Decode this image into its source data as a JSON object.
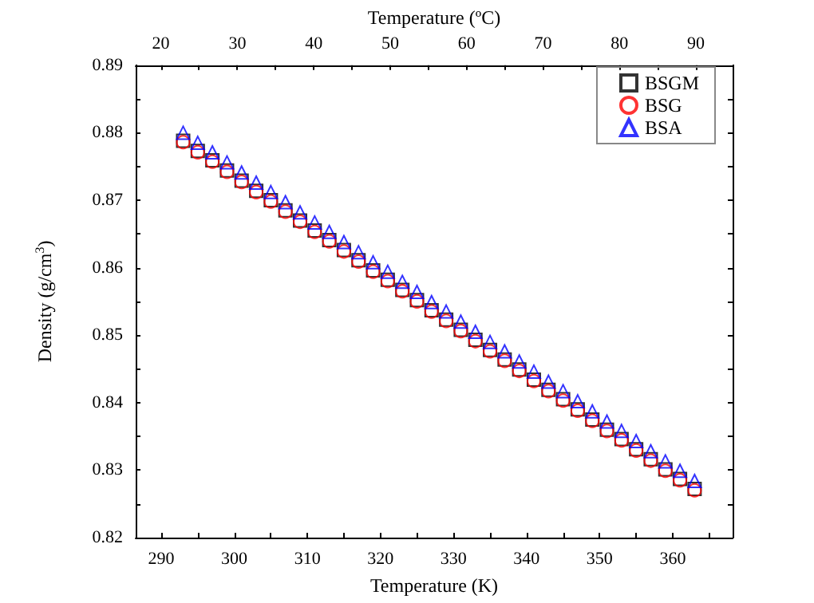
{
  "chart_data": {
    "type": "scatter",
    "xlabel": "Temperature (K)",
    "x2label": "Temperature (ºC)",
    "ylabel": "Density (g/cm$^{3}$)",
    "x": [
      293,
      295,
      297,
      299,
      301,
      303,
      305,
      307,
      309,
      311,
      313,
      315,
      317,
      319,
      321,
      323,
      325,
      327,
      329,
      331,
      333,
      335,
      337,
      339,
      341,
      343,
      345,
      347,
      349,
      351,
      353,
      355,
      357,
      359,
      361,
      363
    ],
    "series": [
      {
        "name": "BSGM",
        "color": "#000000",
        "marker": "square",
        "values": [
          0.8788,
          0.8773,
          0.8759,
          0.8744,
          0.8729,
          0.8714,
          0.87,
          0.8685,
          0.867,
          0.8655,
          0.8641,
          0.8626,
          0.8611,
          0.8596,
          0.8582,
          0.8567,
          0.8552,
          0.8537,
          0.8523,
          0.8508,
          0.8493,
          0.8478,
          0.8464,
          0.8449,
          0.8434,
          0.8419,
          0.8405,
          0.839,
          0.8375,
          0.836,
          0.8346,
          0.8331,
          0.8316,
          0.8301,
          0.8287,
          0.8272
        ]
      },
      {
        "name": "BSG",
        "color": "#ff0000",
        "marker": "circle",
        "values": [
          0.8786,
          0.8771,
          0.8757,
          0.8742,
          0.8727,
          0.8712,
          0.8698,
          0.8683,
          0.8668,
          0.8653,
          0.8639,
          0.8624,
          0.8609,
          0.8594,
          0.858,
          0.8565,
          0.855,
          0.8535,
          0.8521,
          0.8506,
          0.8491,
          0.8476,
          0.8462,
          0.8447,
          0.8432,
          0.8417,
          0.8403,
          0.8388,
          0.8373,
          0.8358,
          0.8344,
          0.8329,
          0.8314,
          0.8299,
          0.8285,
          0.827
        ]
      },
      {
        "name": "BSA",
        "color": "#0000ff",
        "marker": "triangle",
        "values": [
          0.88,
          0.8785,
          0.8771,
          0.8756,
          0.8741,
          0.8726,
          0.8712,
          0.8697,
          0.8682,
          0.8667,
          0.8653,
          0.8638,
          0.8623,
          0.8608,
          0.8594,
          0.8579,
          0.8564,
          0.8549,
          0.8535,
          0.852,
          0.8505,
          0.849,
          0.8476,
          0.8461,
          0.8446,
          0.8431,
          0.8417,
          0.8402,
          0.8387,
          0.8372,
          0.8358,
          0.8343,
          0.8328,
          0.8313,
          0.8299,
          0.8284
        ]
      }
    ],
    "xlim": [
      286.5,
      368.2
    ],
    "xticks": [
      290,
      300,
      310,
      320,
      330,
      340,
      350,
      360
    ],
    "x2lim": [
      16.7,
      94.8
    ],
    "x2ticks": [
      20,
      30,
      40,
      50,
      60,
      70,
      80,
      90
    ],
    "ylim": [
      0.82,
      0.89
    ],
    "yticks": [
      0.82,
      0.83,
      0.84,
      0.85,
      0.86,
      0.87,
      0.88,
      0.89
    ],
    "grid": false,
    "legend": "top right"
  }
}
